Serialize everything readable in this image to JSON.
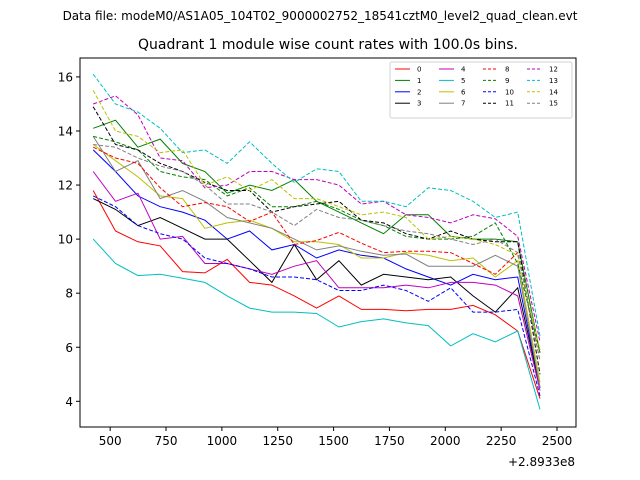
{
  "chart_data": {
    "type": "line",
    "suptitle": "Data file: modeM0/AS1A05_104T02_9000002752_18541cztM0_level2_quad_clean.evt",
    "title": "Quadrant 1 module wise count rates with 100.0s bins.",
    "xlabel": "",
    "ylabel": "",
    "x_offset_label": "+2.8933e8",
    "xlim": [
      365,
      2585
    ],
    "ylim": [
      3.05,
      16.7
    ],
    "xticks": [
      500,
      750,
      1000,
      1250,
      1500,
      1750,
      2000,
      2250,
      2500
    ],
    "yticks": [
      4,
      6,
      8,
      10,
      12,
      14,
      16
    ],
    "grid": false,
    "legend_position": "top-right",
    "legend_columns": 4,
    "x": [
      424,
      524,
      624,
      724,
      824,
      924,
      1024,
      1124,
      1224,
      1324,
      1424,
      1524,
      1624,
      1724,
      1824,
      1924,
      2024,
      2124,
      2224,
      2324,
      2424
    ],
    "series": [
      {
        "name": "0",
        "color": "#ff0000",
        "dash": "solid",
        "values": [
          11.8,
          10.3,
          9.9,
          9.75,
          8.8,
          8.75,
          9.25,
          8.4,
          8.3,
          7.9,
          7.45,
          7.9,
          7.4,
          7.4,
          7.35,
          7.4,
          7.4,
          7.55,
          7.2,
          6.6,
          4.1
        ]
      },
      {
        "name": "1",
        "color": "#008000",
        "dash": "solid",
        "values": [
          14.1,
          14.4,
          13.4,
          13.7,
          12.8,
          12.5,
          11.7,
          12.0,
          11.8,
          12.2,
          11.4,
          11.0,
          10.6,
          10.2,
          10.9,
          10.9,
          10.1,
          10.0,
          10.0,
          9.9,
          5.8
        ]
      },
      {
        "name": "2",
        "color": "#0000ff",
        "dash": "solid",
        "values": [
          13.3,
          12.5,
          11.6,
          11.2,
          11.0,
          10.7,
          10.0,
          10.3,
          9.6,
          9.8,
          9.3,
          9.6,
          9.4,
          9.3,
          8.9,
          8.6,
          8.3,
          8.7,
          8.5,
          8.6,
          4.5
        ]
      },
      {
        "name": "3",
        "color": "#000000",
        "dash": "solid",
        "values": [
          11.5,
          11.1,
          10.5,
          10.8,
          10.4,
          10.0,
          10.0,
          9.2,
          8.4,
          9.8,
          8.5,
          9.2,
          8.3,
          8.7,
          8.6,
          8.5,
          8.6,
          7.9,
          7.3,
          8.2,
          4.5
        ]
      },
      {
        "name": "4",
        "color": "#bf00bf",
        "dash": "solid",
        "values": [
          12.5,
          11.4,
          11.7,
          10.0,
          10.1,
          9.1,
          9.1,
          8.9,
          8.7,
          9.0,
          9.2,
          8.2,
          8.2,
          8.2,
          8.3,
          8.2,
          8.4,
          8.4,
          8.3,
          7.9,
          4.4
        ]
      },
      {
        "name": "5",
        "color": "#00bfbf",
        "dash": "solid",
        "values": [
          10.0,
          9.1,
          8.65,
          8.7,
          8.55,
          8.4,
          7.9,
          7.45,
          7.3,
          7.3,
          7.25,
          6.75,
          6.95,
          7.05,
          6.9,
          6.8,
          6.05,
          6.5,
          6.2,
          6.6,
          3.7
        ]
      },
      {
        "name": "6",
        "color": "#bfbf00",
        "dash": "solid",
        "values": [
          13.5,
          12.9,
          12.3,
          11.6,
          11.5,
          10.4,
          10.6,
          10.7,
          10.4,
          9.9,
          9.9,
          9.8,
          9.3,
          9.3,
          9.5,
          9.4,
          9.2,
          9.3,
          8.6,
          9.2,
          4.7
        ]
      },
      {
        "name": "7",
        "color": "#808080",
        "dash": "solid",
        "values": [
          13.8,
          12.5,
          12.9,
          11.5,
          11.8,
          11.4,
          10.8,
          10.6,
          10.4,
          10.0,
          9.6,
          9.75,
          9.55,
          9.4,
          9.45,
          9.0,
          9.0,
          9.0,
          9.4,
          9.0,
          4.5
        ]
      },
      {
        "name": "8",
        "color": "#ff0000",
        "dash": "dashed",
        "values": [
          13.4,
          13.0,
          12.8,
          11.9,
          11.2,
          11.35,
          11.2,
          10.65,
          11.0,
          9.8,
          9.95,
          10.25,
          9.85,
          9.5,
          9.55,
          9.55,
          9.5,
          9.1,
          8.7,
          9.5,
          5.5
        ]
      },
      {
        "name": "9",
        "color": "#008000",
        "dash": "dashed",
        "values": [
          13.8,
          13.6,
          13.3,
          12.5,
          12.3,
          12.2,
          11.6,
          11.9,
          11.2,
          11.2,
          11.4,
          11.1,
          10.7,
          10.5,
          10.1,
          10.0,
          10.0,
          10.1,
          10.6,
          9.1,
          5.8
        ]
      },
      {
        "name": "10",
        "color": "#0000ff",
        "dash": "dashed",
        "values": [
          11.6,
          11.2,
          10.5,
          10.2,
          10.0,
          9.3,
          9.1,
          8.9,
          8.6,
          8.6,
          8.5,
          8.1,
          8.1,
          8.3,
          8.1,
          7.7,
          8.2,
          7.3,
          7.3,
          7.4,
          4.2
        ]
      },
      {
        "name": "11",
        "color": "#000000",
        "dash": "dashed",
        "values": [
          14.9,
          13.5,
          13.3,
          12.8,
          12.5,
          12.1,
          11.8,
          11.8,
          11.0,
          11.2,
          11.3,
          11.4,
          10.7,
          10.6,
          10.2,
          10.0,
          10.3,
          10.0,
          9.9,
          9.9,
          5.0
        ]
      },
      {
        "name": "12",
        "color": "#bf00bf",
        "dash": "dashed",
        "values": [
          15.0,
          15.3,
          14.6,
          13.0,
          12.9,
          11.9,
          12.0,
          12.5,
          12.5,
          12.2,
          12.2,
          12.0,
          11.3,
          11.4,
          10.9,
          10.8,
          10.6,
          10.9,
          10.75,
          10.1,
          6.2
        ]
      },
      {
        "name": "13",
        "color": "#00bfbf",
        "dash": "dashed",
        "values": [
          16.1,
          15.0,
          14.7,
          14.1,
          13.2,
          13.3,
          12.8,
          13.6,
          12.8,
          12.1,
          12.6,
          12.5,
          11.4,
          11.4,
          11.2,
          11.9,
          11.8,
          11.4,
          10.8,
          11.0,
          6.4
        ]
      },
      {
        "name": "14",
        "color": "#bfbf00",
        "dash": "dashed",
        "values": [
          15.5,
          14.0,
          13.8,
          13.2,
          13.3,
          12.0,
          12.3,
          11.8,
          12.2,
          11.5,
          11.5,
          11.2,
          10.9,
          11.0,
          10.8,
          10.0,
          10.1,
          10.0,
          9.8,
          9.4,
          5.9
        ]
      },
      {
        "name": "15",
        "color": "#808080",
        "dash": "dashed",
        "values": [
          13.5,
          13.4,
          13.0,
          12.7,
          12.5,
          12.0,
          11.3,
          11.3,
          11.0,
          10.5,
          11.1,
          10.8,
          10.7,
          10.5,
          10.3,
          10.2,
          10.0,
          9.8,
          10.0,
          9.5,
          5.5
        ]
      }
    ]
  }
}
